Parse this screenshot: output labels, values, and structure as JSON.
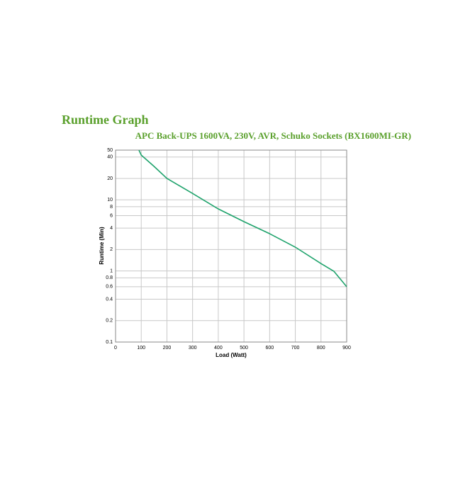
{
  "chart_data": {
    "type": "line",
    "title": "Runtime Graph",
    "subtitle": "APC Back-UPS 1600VA, 230V, AVR, Schuko Sockets (BX1600MI-GR)",
    "x_label": "Load (Watt)",
    "y_label": "Runtime (Min)",
    "x": [
      91,
      100,
      150,
      200,
      300,
      400,
      500,
      600,
      700,
      800,
      850,
      900
    ],
    "values": [
      50,
      42.6,
      29.5,
      20,
      12.3,
      7.45,
      4.93,
      3.34,
      2.16,
      1.27,
      0.99,
      0.6
    ],
    "color": "#1fa36c",
    "xlim": [
      0,
      900
    ],
    "xticks": [
      0,
      100,
      200,
      300,
      400,
      500,
      600,
      700,
      800,
      900
    ],
    "ylim": [
      0.1,
      50
    ],
    "yticks": [
      0.1,
      0.2,
      0.4,
      0.6,
      0.8,
      1,
      2,
      4,
      6,
      8,
      10,
      20,
      40,
      50
    ],
    "y_log": true,
    "grid": true
  }
}
